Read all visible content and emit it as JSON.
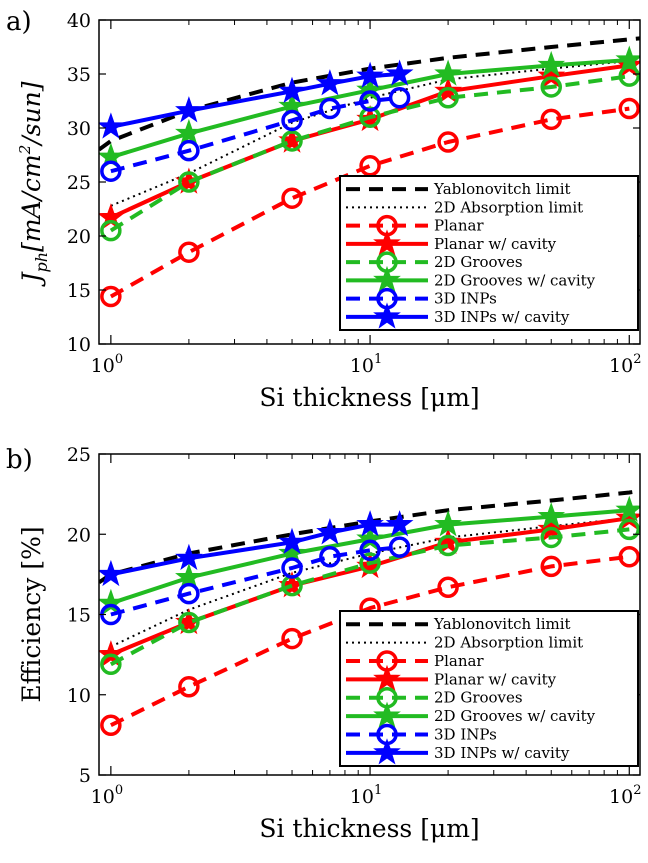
{
  "panels": [
    {
      "label": "a)",
      "chart_data": {
        "type": "line",
        "xscale": "log",
        "xlim": [
          0.9,
          110
        ],
        "ylim": [
          10,
          40
        ],
        "yticks": [
          10,
          15,
          20,
          25,
          30,
          35,
          40
        ],
        "xticks": [
          {
            "value": 1,
            "base": "10",
            "exp": "0"
          },
          {
            "value": 10,
            "base": "10",
            "exp": "1"
          },
          {
            "value": 100,
            "base": "10",
            "exp": "2"
          }
        ],
        "xlabel": "Si thickness [μm]",
        "ylabel": {
          "main": "J",
          "sub": "ph",
          "rest": "[mA/cm",
          "sup": "2",
          "end": "/sun]"
        },
        "legend_position": "lower-right",
        "grid": false,
        "series": [
          {
            "name": "Yablonovitch limit",
            "color": "#000000",
            "dash": "dashed",
            "marker": "none",
            "x": [
              0.9,
              1,
              2,
              5,
              10,
              20,
              50,
              100,
              110
            ],
            "y": [
              28.0,
              28.8,
              31.6,
              34.2,
              35.5,
              36.5,
              37.5,
              38.2,
              38.3
            ]
          },
          {
            "name": "2D Absorption limit",
            "color": "#000000",
            "dash": "dotted",
            "marker": "none",
            "x": [
              1,
              2,
              5,
              10,
              20,
              50,
              100
            ],
            "y": [
              22.8,
              25.8,
              30.5,
              32.8,
              34.5,
              35.5,
              36.2
            ]
          },
          {
            "name": "Planar",
            "color": "#ff0000",
            "dash": "dashed",
            "marker": "circle",
            "x": [
              1,
              2,
              5,
              10,
              20,
              50,
              100
            ],
            "y": [
              14.4,
              18.5,
              23.5,
              26.5,
              28.7,
              30.8,
              31.8
            ]
          },
          {
            "name": "Planar w/ cavity",
            "color": "#ff0000",
            "dash": "solid",
            "marker": "star",
            "x": [
              1,
              2,
              5,
              10,
              20,
              50,
              100
            ],
            "y": [
              21.7,
              25.0,
              28.8,
              30.8,
              33.4,
              34.8,
              35.8
            ]
          },
          {
            "name": "2D Grooves",
            "color": "#22bb22",
            "dash": "dashed",
            "marker": "circle",
            "x": [
              1,
              2,
              5,
              10,
              20,
              50,
              100
            ],
            "y": [
              20.5,
              25.0,
              28.8,
              31.0,
              32.8,
              33.8,
              34.8
            ]
          },
          {
            "name": "2D Grooves w/ cavity",
            "color": "#22bb22",
            "dash": "solid",
            "marker": "star",
            "x": [
              1,
              2,
              5,
              10,
              20,
              50,
              100
            ],
            "y": [
              27.3,
              29.5,
              32.0,
              33.5,
              35.0,
              35.8,
              36.3
            ]
          },
          {
            "name": "3D INPs",
            "color": "#0000ff",
            "dash": "dashed",
            "marker": "circle",
            "x": [
              1,
              2,
              5,
              7,
              10,
              13
            ],
            "y": [
              26.0,
              27.9,
              30.7,
              31.8,
              32.5,
              32.8
            ]
          },
          {
            "name": "3D INPs w/ cavity",
            "color": "#0000ff",
            "dash": "solid",
            "marker": "star",
            "x": [
              1,
              2,
              5,
              7,
              10,
              13
            ],
            "y": [
              30.1,
              31.6,
              33.4,
              34.1,
              34.8,
              35.0
            ]
          }
        ]
      }
    },
    {
      "label": "b)",
      "chart_data": {
        "type": "line",
        "xscale": "log",
        "xlim": [
          0.9,
          110
        ],
        "ylim": [
          5,
          25
        ],
        "yticks": [
          5,
          10,
          15,
          20,
          25
        ],
        "xticks": [
          {
            "value": 1,
            "base": "10",
            "exp": "0"
          },
          {
            "value": 10,
            "base": "10",
            "exp": "1"
          },
          {
            "value": 100,
            "base": "10",
            "exp": "2"
          }
        ],
        "xlabel": "Si thickness [μm]",
        "ylabel": {
          "main": "Efficiency [%]"
        },
        "legend_position": "lower-right",
        "grid": false,
        "series": [
          {
            "name": "Yablonovitch limit",
            "color": "#000000",
            "dash": "dashed",
            "marker": "none",
            "x": [
              0.9,
              1,
              2,
              5,
              10,
              20,
              50,
              100,
              110
            ],
            "y": [
              17.0,
              17.5,
              18.8,
              20.0,
              20.8,
              21.5,
              22.1,
              22.6,
              22.7
            ]
          },
          {
            "name": "2D Absorption limit",
            "color": "#000000",
            "dash": "dotted",
            "marker": "none",
            "x": [
              1,
              2,
              5,
              10,
              20,
              50,
              100
            ],
            "y": [
              13.0,
              15.3,
              17.6,
              18.8,
              19.8,
              20.5,
              21.0
            ]
          },
          {
            "name": "Planar",
            "color": "#ff0000",
            "dash": "dashed",
            "marker": "circle",
            "x": [
              1,
              2,
              5,
              10,
              20,
              50,
              100
            ],
            "y": [
              8.1,
              10.5,
              13.5,
              15.4,
              16.7,
              18.0,
              18.6
            ]
          },
          {
            "name": "Planar w/ cavity",
            "color": "#ff0000",
            "dash": "solid",
            "marker": "star",
            "x": [
              1,
              2,
              5,
              10,
              20,
              50,
              100
            ],
            "y": [
              12.5,
              14.5,
              16.8,
              18.0,
              19.5,
              20.3,
              21.0
            ]
          },
          {
            "name": "2D Grooves",
            "color": "#22bb22",
            "dash": "dashed",
            "marker": "circle",
            "x": [
              1,
              2,
              5,
              10,
              20,
              50,
              100
            ],
            "y": [
              11.9,
              14.5,
              16.8,
              18.2,
              19.3,
              19.8,
              20.3
            ]
          },
          {
            "name": "2D Grooves w/ cavity",
            "color": "#22bb22",
            "dash": "solid",
            "marker": "star",
            "x": [
              1,
              2,
              5,
              10,
              20,
              50,
              100
            ],
            "y": [
              15.7,
              17.3,
              18.8,
              19.7,
              20.6,
              21.1,
              21.5
            ]
          },
          {
            "name": "3D INPs",
            "color": "#0000ff",
            "dash": "dashed",
            "marker": "circle",
            "x": [
              1,
              2,
              5,
              7,
              10,
              13
            ],
            "y": [
              15.0,
              16.3,
              17.9,
              18.6,
              19.0,
              19.2
            ]
          },
          {
            "name": "3D INPs w/ cavity",
            "color": "#0000ff",
            "dash": "solid",
            "marker": "star",
            "x": [
              1,
              2,
              5,
              7,
              10,
              13
            ],
            "y": [
              17.5,
              18.5,
              19.5,
              20.1,
              20.6,
              20.6
            ]
          }
        ]
      }
    }
  ]
}
